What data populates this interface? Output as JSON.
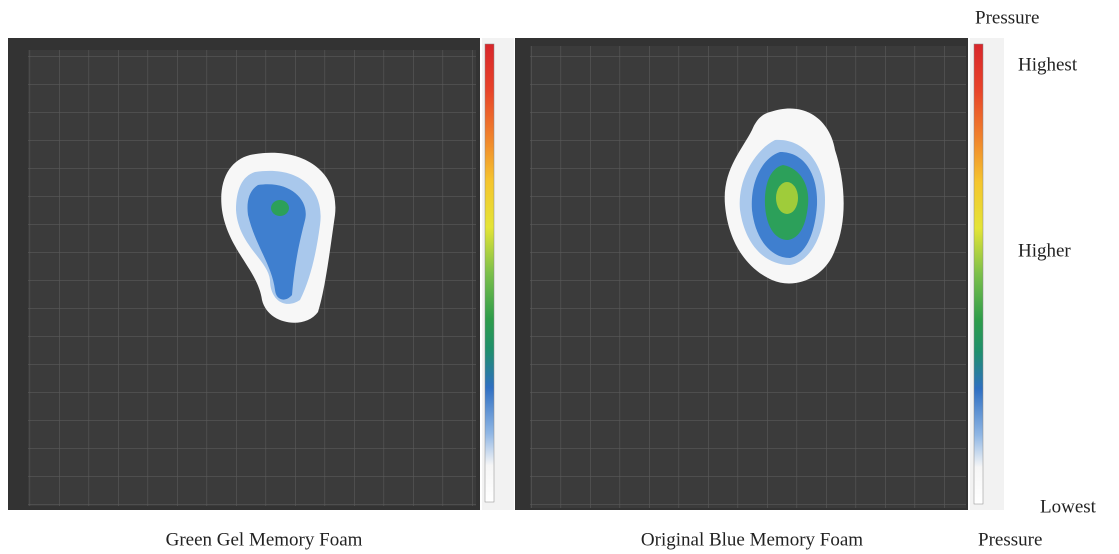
{
  "panels": [
    {
      "caption": "Green Gel Memory Foam"
    },
    {
      "caption": "Original Blue Memory Foam"
    }
  ],
  "legend": {
    "title": "Pressure",
    "highest": "Highest",
    "higher": "Higher",
    "lowest": "Lowest",
    "footer": "Pressure"
  }
}
